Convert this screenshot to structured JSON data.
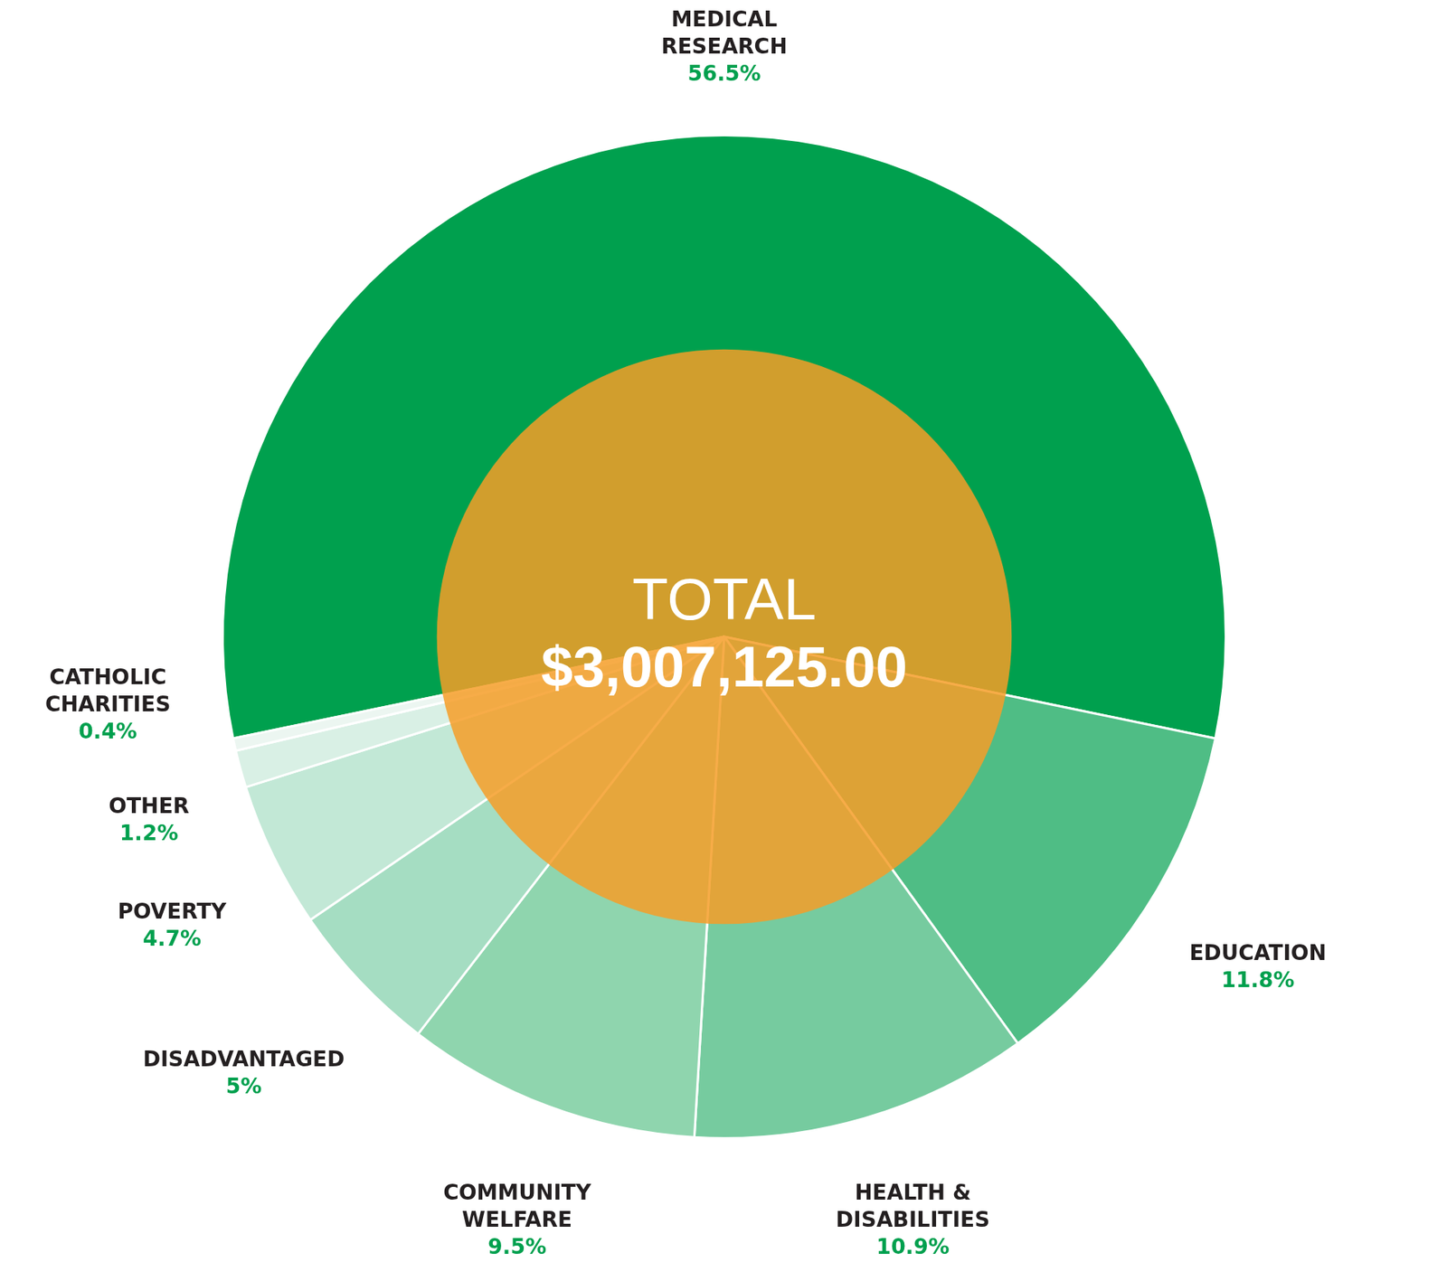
{
  "chart_data": {
    "type": "pie",
    "categories": [
      "MEDICAL RESEARCH",
      "EDUCATION",
      "HEALTH & DISABILITIES",
      "COMMUNITY WELFARE",
      "DISADVANTAGED",
      "POVERTY",
      "OTHER",
      "CATHOLIC CHARITIES"
    ],
    "values": [
      56.5,
      11.8,
      10.9,
      9.5,
      5,
      4.7,
      1.2,
      0.4
    ],
    "value_labels": [
      "56.5%",
      "11.8%",
      "10.9%",
      "9.5%",
      "5%",
      "4.7%",
      "1.2%",
      "0.4%"
    ],
    "colors": [
      "#00a04e",
      "#4fbd85",
      "#76cb9f",
      "#8fd5ae",
      "#a5ddc2",
      "#c2e8d6",
      "#d9f0e5",
      "#ecf6f1"
    ],
    "annotations": [
      "TOTAL",
      "$3,007,125.00"
    ],
    "data_labels": true
  }
}
